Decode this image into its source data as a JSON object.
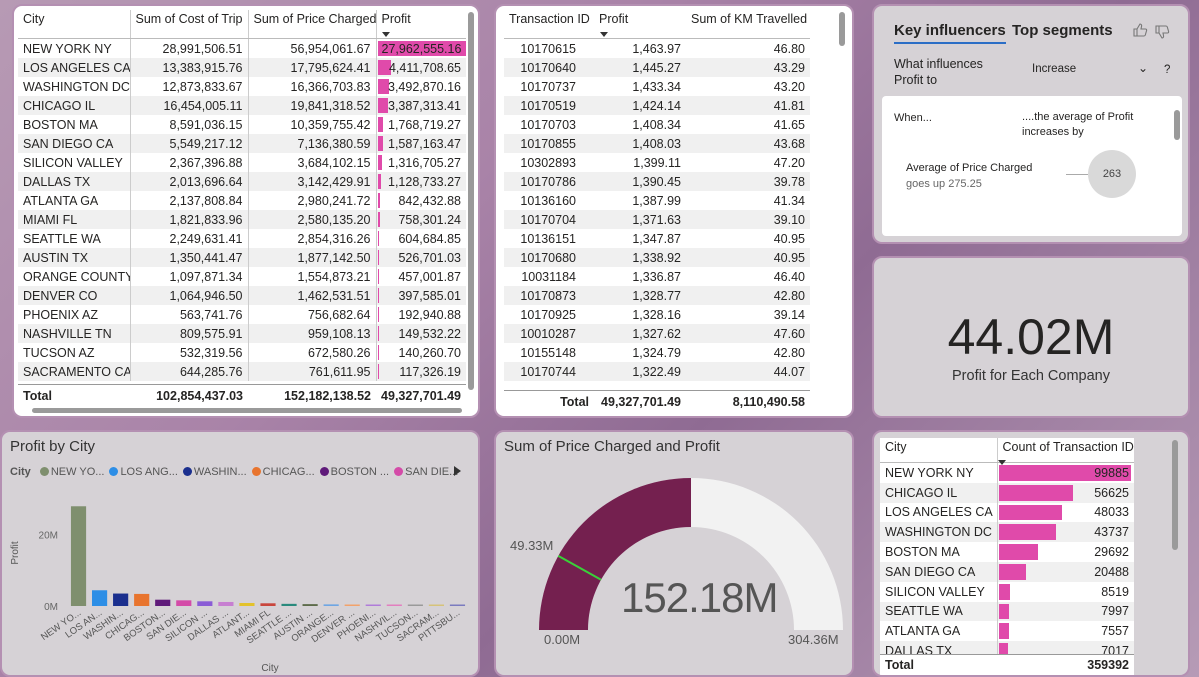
{
  "city_table": {
    "headers": [
      "City",
      "Sum of Cost of Trip",
      "Sum of Price Charged",
      "Profit"
    ],
    "rows": [
      [
        "NEW YORK NY",
        "28,991,506.51",
        "56,954,061.67",
        "27,962,555.16"
      ],
      [
        "LOS ANGELES CA",
        "13,383,915.76",
        "17,795,624.41",
        "4,411,708.65"
      ],
      [
        "WASHINGTON DC",
        "12,873,833.67",
        "16,366,703.83",
        "3,492,870.16"
      ],
      [
        "CHICAGO IL",
        "16,454,005.11",
        "19,841,318.52",
        "3,387,313.41"
      ],
      [
        "BOSTON MA",
        "8,591,036.15",
        "10,359,755.42",
        "1,768,719.27"
      ],
      [
        "SAN DIEGO CA",
        "5,549,217.12",
        "7,136,380.59",
        "1,587,163.47"
      ],
      [
        "SILICON VALLEY",
        "2,367,396.88",
        "3,684,102.15",
        "1,316,705.27"
      ],
      [
        "DALLAS TX",
        "2,013,696.64",
        "3,142,429.91",
        "1,128,733.27"
      ],
      [
        "ATLANTA GA",
        "2,137,808.84",
        "2,980,241.72",
        "842,432.88"
      ],
      [
        "MIAMI FL",
        "1,821,833.96",
        "2,580,135.20",
        "758,301.24"
      ],
      [
        "SEATTLE WA",
        "2,249,631.41",
        "2,854,316.26",
        "604,684.85"
      ],
      [
        "AUSTIN TX",
        "1,350,441.47",
        "1,877,142.50",
        "526,701.03"
      ],
      [
        "ORANGE COUNTY",
        "1,097,871.34",
        "1,554,873.21",
        "457,001.87"
      ],
      [
        "DENVER CO",
        "1,064,946.50",
        "1,462,531.51",
        "397,585.01"
      ],
      [
        "PHOENIX AZ",
        "563,741.76",
        "756,682.64",
        "192,940.88"
      ],
      [
        "NASHVILLE TN",
        "809,575.91",
        "959,108.13",
        "149,532.22"
      ],
      [
        "TUCSON AZ",
        "532,319.56",
        "672,580.26",
        "140,260.70"
      ],
      [
        "SACRAMENTO CA",
        "644,285.76",
        "761,611.95",
        "117,326.19"
      ]
    ],
    "bar_fractions": [
      1.0,
      0.158,
      0.125,
      0.121,
      0.063,
      0.057,
      0.047,
      0.04,
      0.03,
      0.027,
      0.022,
      0.019,
      0.016,
      0.014,
      0.007,
      0.005,
      0.005,
      0.004
    ],
    "total": [
      "Total",
      "102,854,437.03",
      "152,182,138.52",
      "49,327,701.49"
    ]
  },
  "transaction_table": {
    "headers": [
      "Transaction ID",
      "Profit",
      "Sum of KM Travelled"
    ],
    "rows": [
      [
        "10170615",
        "1,463.97",
        "46.80"
      ],
      [
        "10170640",
        "1,445.27",
        "43.29"
      ],
      [
        "10170737",
        "1,433.34",
        "43.20"
      ],
      [
        "10170519",
        "1,424.14",
        "41.81"
      ],
      [
        "10170703",
        "1,408.34",
        "41.65"
      ],
      [
        "10170855",
        "1,408.03",
        "43.68"
      ],
      [
        "10302893",
        "1,399.11",
        "47.20"
      ],
      [
        "10170786",
        "1,390.45",
        "39.78"
      ],
      [
        "10136160",
        "1,387.99",
        "41.34"
      ],
      [
        "10170704",
        "1,371.63",
        "39.10"
      ],
      [
        "10136151",
        "1,347.87",
        "40.95"
      ],
      [
        "10170680",
        "1,338.92",
        "40.95"
      ],
      [
        "10031184",
        "1,336.87",
        "46.40"
      ],
      [
        "10170873",
        "1,328.77",
        "42.80"
      ],
      [
        "10170925",
        "1,328.16",
        "39.14"
      ],
      [
        "10010287",
        "1,327.62",
        "47.60"
      ],
      [
        "10155148",
        "1,324.79",
        "42.80"
      ],
      [
        "10170744",
        "1,322.49",
        "44.07"
      ]
    ],
    "total": [
      "Total",
      "49,327,701.49",
      "8,110,490.58"
    ]
  },
  "key_influencers": {
    "tab_active": "Key influencers",
    "tab_other": "Top segments",
    "question": "What influences Profit to",
    "dropdown_value": "Increase",
    "help": "?",
    "when_label": "When...",
    "result_label": "....the average of Profit increases by",
    "factor_title": "Average of Price Charged",
    "factor_sub": "goes up 275.25",
    "bubble_value": "263"
  },
  "card": {
    "value": "44.02M",
    "label": "Profit for Each Company"
  },
  "profit_by_city": {
    "title": "Profit by City",
    "legend_label": "City",
    "legend_items": [
      {
        "name": "NEW YO...",
        "color": "#7f8f6e"
      },
      {
        "name": "LOS ANG...",
        "color": "#2d8ee6"
      },
      {
        "name": "WASHIN...",
        "color": "#1b2f8e"
      },
      {
        "name": "CHICAG...",
        "color": "#e8742e"
      },
      {
        "name": "BOSTON ...",
        "color": "#5f1a7a"
      },
      {
        "name": "SAN DIE...",
        "color": "#d44ba8"
      }
    ],
    "y_label": "Profit",
    "x_label": "City",
    "y_ticks": [
      "20M",
      "0M"
    ]
  },
  "chart_data": {
    "type": "bar",
    "title": "Profit by City",
    "xlabel": "City",
    "ylabel": "Profit",
    "ylim": [
      0,
      30000000
    ],
    "categories": [
      "NEW YO...",
      "LOS AN...",
      "WASHIN...",
      "CHICAG...",
      "BOSTON...",
      "SAN DIE...",
      "SILICON ...",
      "DALLAS ...",
      "ATLANT...",
      "MIAMI FL",
      "SEATTLE ...",
      "AUSTIN ...",
      "ORANGE...",
      "DENVER ...",
      "PHOENI...",
      "NASHVIL...",
      "TUCSON...",
      "SACRAM...",
      "PITTSBU..."
    ],
    "values": [
      27962555,
      4411709,
      3492870,
      3387313,
      1768719,
      1587163,
      1316705,
      1128733,
      842433,
      758301,
      604685,
      526701,
      457002,
      397585,
      192941,
      149532,
      140261,
      117326,
      60000
    ],
    "colors": [
      "#7f8f6e",
      "#2d8ee6",
      "#1b2f8e",
      "#e8742e",
      "#5f1a7a",
      "#d44ba8",
      "#8a5cd6",
      "#c77fd1",
      "#e3c22c",
      "#c9463d",
      "#2a8a7d",
      "#5d6b4a",
      "#6fa6e3",
      "#f2a26b",
      "#b07cd9",
      "#e27fbf",
      "#9a9a9a",
      "#d6c37a",
      "#7b7bbf"
    ]
  },
  "gauge": {
    "title": "Sum of Price Charged and Profit",
    "value_text": "152.18M",
    "min_text": "0.00M",
    "max_text": "304.36M",
    "target_text": "49.33M",
    "value": 152182138.52,
    "min": 0,
    "max": 304364277,
    "target": 49327701.49,
    "fill_color": "#74204f"
  },
  "count_table": {
    "headers": [
      "City",
      "Count of Transaction ID"
    ],
    "rows": [
      [
        "NEW YORK NY",
        "99885"
      ],
      [
        "CHICAGO IL",
        "56625"
      ],
      [
        "LOS ANGELES CA",
        "48033"
      ],
      [
        "WASHINGTON DC",
        "43737"
      ],
      [
        "BOSTON MA",
        "29692"
      ],
      [
        "SAN DIEGO CA",
        "20488"
      ],
      [
        "SILICON VALLEY",
        "8519"
      ],
      [
        "SEATTLE WA",
        "7997"
      ],
      [
        "ATLANTA GA",
        "7557"
      ],
      [
        "DALLAS TX",
        "7017"
      ]
    ],
    "bar_fractions": [
      1.0,
      0.567,
      0.481,
      0.438,
      0.297,
      0.205,
      0.085,
      0.08,
      0.076,
      0.07
    ],
    "total": [
      "Total",
      "359392"
    ],
    "bar_color": "#e04aaa"
  }
}
